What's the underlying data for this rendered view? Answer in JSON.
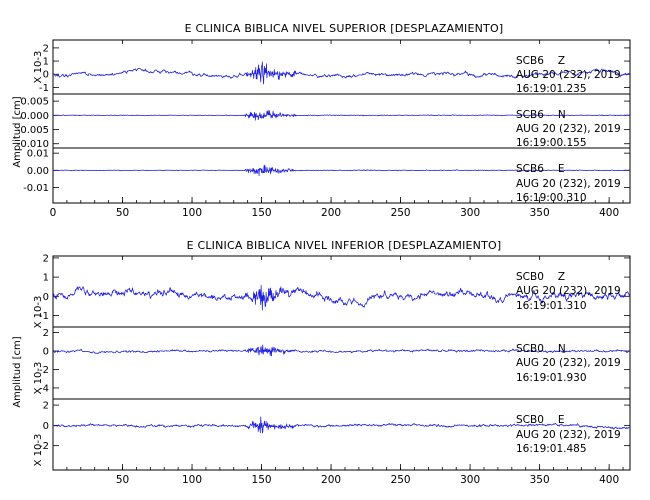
{
  "chart_data": [
    {
      "type": "line",
      "title": "E CLINICA BIBLICA NIVEL SUPERIOR [DESPLAZAMIENTO]",
      "ylabel": "Amplitud [cm]",
      "xlim": [
        0,
        415
      ],
      "x_ticks": [
        0,
        50,
        100,
        150,
        200,
        250,
        300,
        350,
        400
      ],
      "x_tick_labels": [
        "0",
        "50",
        "100",
        "150",
        "200",
        "250",
        "300",
        "350",
        "400"
      ],
      "panels": [
        {
          "id": "sup-z",
          "station": "SCB6",
          "component": "Z",
          "date": "AUG 20 (232), 2019",
          "time": "16:19:01.235",
          "scale_label": "X 10-3",
          "ylim": [
            -1.5,
            2.6
          ],
          "y_ticks": [
            -1,
            0,
            1,
            2
          ],
          "y_tick_labels": [
            "-1",
            "0",
            "1",
            "2"
          ],
          "trace": {
            "offset": 0.05,
            "amplitude": 2.3,
            "background": 0.35,
            "drift": 0.7,
            "seed": 11
          },
          "series": [
            {
              "x": [
                0,
                50,
                100,
                140,
                150,
                160,
                200,
                250,
                300,
                350,
                410
              ],
              "y": [
                -0.3,
                0.4,
                0.3,
                1.5,
                2.4,
                1.0,
                0.6,
                0.9,
                0.5,
                0.4,
                0.6
              ]
            }
          ]
        },
        {
          "id": "sup-n",
          "station": "SCB6",
          "component": "N",
          "date": "AUG 20 (232), 2019",
          "time": "16:19:00.155",
          "scale_label": "",
          "ylim": [
            -0.0115,
            0.0075
          ],
          "y_ticks": [
            -0.01,
            -0.005,
            0,
            0.005
          ],
          "y_tick_labels": [
            "-0.010",
            "-0.005",
            "0.000",
            "0.005"
          ],
          "trace": {
            "offset": 0.0,
            "amplitude": 0.0068,
            "background": 0.0004,
            "drift": 0.0,
            "seed": 23
          },
          "series": [
            {
              "x": [
                0,
                100,
                150,
                160,
                250,
                410
              ],
              "y": [
                0.0,
                0.0,
                0.0065,
                -0.004,
                0.0,
                0.0
              ]
            }
          ]
        },
        {
          "id": "sup-e",
          "station": "SCB6",
          "component": "E",
          "date": "AUG 20 (232), 2019",
          "time": "16:19:00.310",
          "scale_label": "",
          "ylim": [
            -0.019,
            0.013
          ],
          "y_ticks": [
            -0.01,
            0,
            0.01
          ],
          "y_tick_labels": [
            "-0.01",
            "0.00",
            "0.01"
          ],
          "trace": {
            "offset": 0.0,
            "amplitude": 0.012,
            "background": 0.0006,
            "drift": 0.0,
            "seed": 37
          },
          "series": [
            {
              "x": [
                0,
                100,
                150,
                160,
                250,
                410
              ],
              "y": [
                0.0,
                0.0,
                0.011,
                -0.006,
                0.0,
                0.0
              ]
            }
          ]
        }
      ]
    },
    {
      "type": "line",
      "title": "E CLINICA BIBLICA NIVEL INFERIOR [DESPLAZAMIENTO]",
      "ylabel": "Amplitud [cm]",
      "xlim": [
        0,
        415
      ],
      "x_ticks": [
        50,
        100,
        150,
        200,
        250,
        300,
        350,
        400
      ],
      "x_tick_labels": [
        "50",
        "100",
        "150",
        "200",
        "250",
        "300",
        "350",
        "400"
      ],
      "panels": [
        {
          "id": "inf-z",
          "station": "SCB0",
          "component": "Z",
          "date": "AUG 20 (232), 2019",
          "time": "16:19:01.310",
          "scale_label": "X 10-3",
          "ylim": [
            -1.6,
            2.1
          ],
          "y_ticks": [
            -1,
            0,
            1,
            2
          ],
          "y_tick_labels": [
            "-1",
            "0",
            "1",
            "2"
          ],
          "trace": {
            "offset": 0.0,
            "amplitude": 1.9,
            "background": 0.6,
            "drift": 0.9,
            "seed": 51
          },
          "series": [
            {
              "x": [
                0,
                25,
                50,
                100,
                150,
                200,
                300,
                410
              ],
              "y": [
                0.0,
                1.4,
                -0.6,
                0.3,
                1.9,
                -0.8,
                0.7,
                0.3
              ]
            }
          ]
        },
        {
          "id": "inf-n",
          "station": "SCB0",
          "component": "N",
          "date": "AUG 20 (232), 2019",
          "time": "16:19:01.930",
          "scale_label": "X 10-3",
          "ylim": [
            -5.2,
            2.6
          ],
          "y_ticks": [
            -4,
            -2,
            0,
            2
          ],
          "y_tick_labels": [
            "-4",
            "-2",
            "0",
            "2"
          ],
          "trace": {
            "offset": 0.0,
            "amplitude": 2.4,
            "background": 0.45,
            "drift": 0.3,
            "seed": 67
          },
          "series": [
            {
              "x": [
                0,
                100,
                150,
                160,
                250,
                410
              ],
              "y": [
                0.0,
                0.3,
                2.4,
                -4.5,
                0.4,
                0.5
              ]
            }
          ]
        },
        {
          "id": "inf-e",
          "station": "SCB0",
          "component": "E",
          "date": "AUG 20 (232), 2019",
          "time": "16:19:01.485",
          "scale_label": "X 10-3",
          "ylim": [
            -4.4,
            2.6
          ],
          "y_ticks": [
            -2,
            0,
            2
          ],
          "y_tick_labels": [
            "-2",
            "0",
            "2"
          ],
          "trace": {
            "offset": 0.0,
            "amplitude": 2.3,
            "background": 0.45,
            "drift": 0.4,
            "seed": 79
          },
          "series": [
            {
              "x": [
                0,
                100,
                150,
                155,
                250,
                410
              ],
              "y": [
                0.0,
                0.2,
                2.3,
                -4.0,
                0.3,
                0.2
              ]
            }
          ]
        }
      ]
    }
  ]
}
